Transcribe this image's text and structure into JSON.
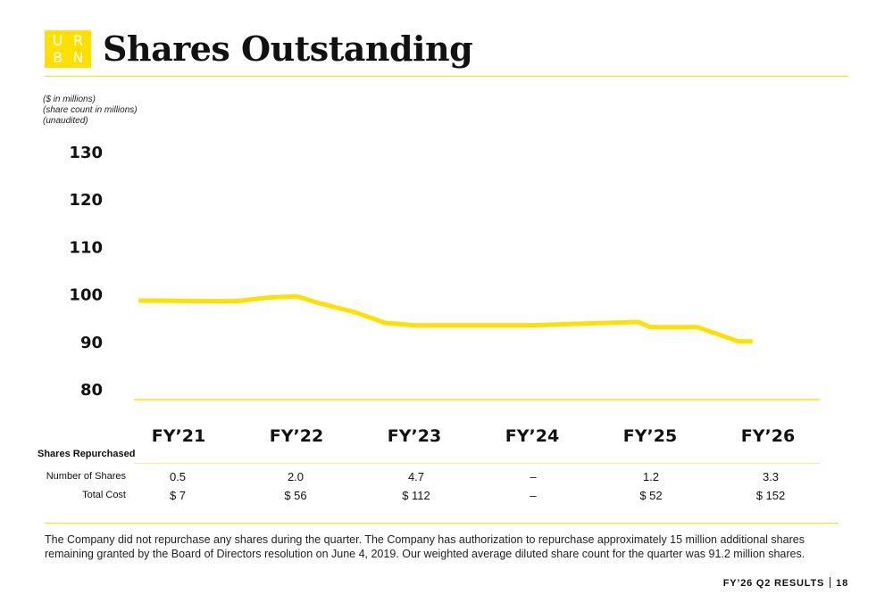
{
  "logo": {
    "letters": [
      "U",
      "R",
      "B",
      "N"
    ]
  },
  "header": {
    "title": "Shares Outstanding"
  },
  "notes": [
    "($ in millions)",
    "(share count in millions)",
    "(unaudited)"
  ],
  "chart_data": {
    "type": "line",
    "title": "",
    "xlabel": "",
    "ylabel": "",
    "categories": [
      "FY’21",
      "FY’22",
      "FY’23",
      "FY’24",
      "FY’25",
      "FY’26"
    ],
    "ylim": [
      80,
      130
    ],
    "yticks": [
      "130",
      "120",
      "110",
      "100",
      "90",
      "80"
    ],
    "grid": false,
    "legend": "none",
    "line_color": "#FFE000",
    "series": [
      {
        "x": [
          0,
          0.2,
          0.5,
          0.75,
          1.0,
          1.2,
          1.5,
          1.75,
          2.0,
          2.5,
          3.0,
          3.5,
          3.9,
          4.0,
          4.4,
          4.75,
          4.87
        ],
        "y": [
          99.0,
          98.9,
          98.9,
          99.6,
          99.9,
          98.4,
          96.5,
          94.3,
          93.8,
          93.8,
          93.8,
          94.2,
          94.5,
          93.4,
          93.4,
          90.4,
          90.4
        ]
      }
    ]
  },
  "table": {
    "heading": "Shares Repurchased",
    "rows": [
      {
        "label": "Number of Shares",
        "values": [
          "0.5",
          "2.0",
          "4.7",
          "–",
          "1.2",
          "3.3"
        ]
      },
      {
        "label": "Total Cost",
        "values": [
          "$ 7",
          "$ 56",
          "$ 112",
          "–",
          "$ 52",
          "$ 152"
        ]
      }
    ]
  },
  "footnote": "The Company did not repurchase any shares during the quarter. The Company has authorization to repurchase approximately 15 million additional shares remaining granted by the Board of Directors resolution on June 4, 2019. Our weighted average diluted share count for the quarter was 91.2 million shares.",
  "footer": {
    "label": "FY’26 Q2 RESULTS",
    "page": "18"
  }
}
